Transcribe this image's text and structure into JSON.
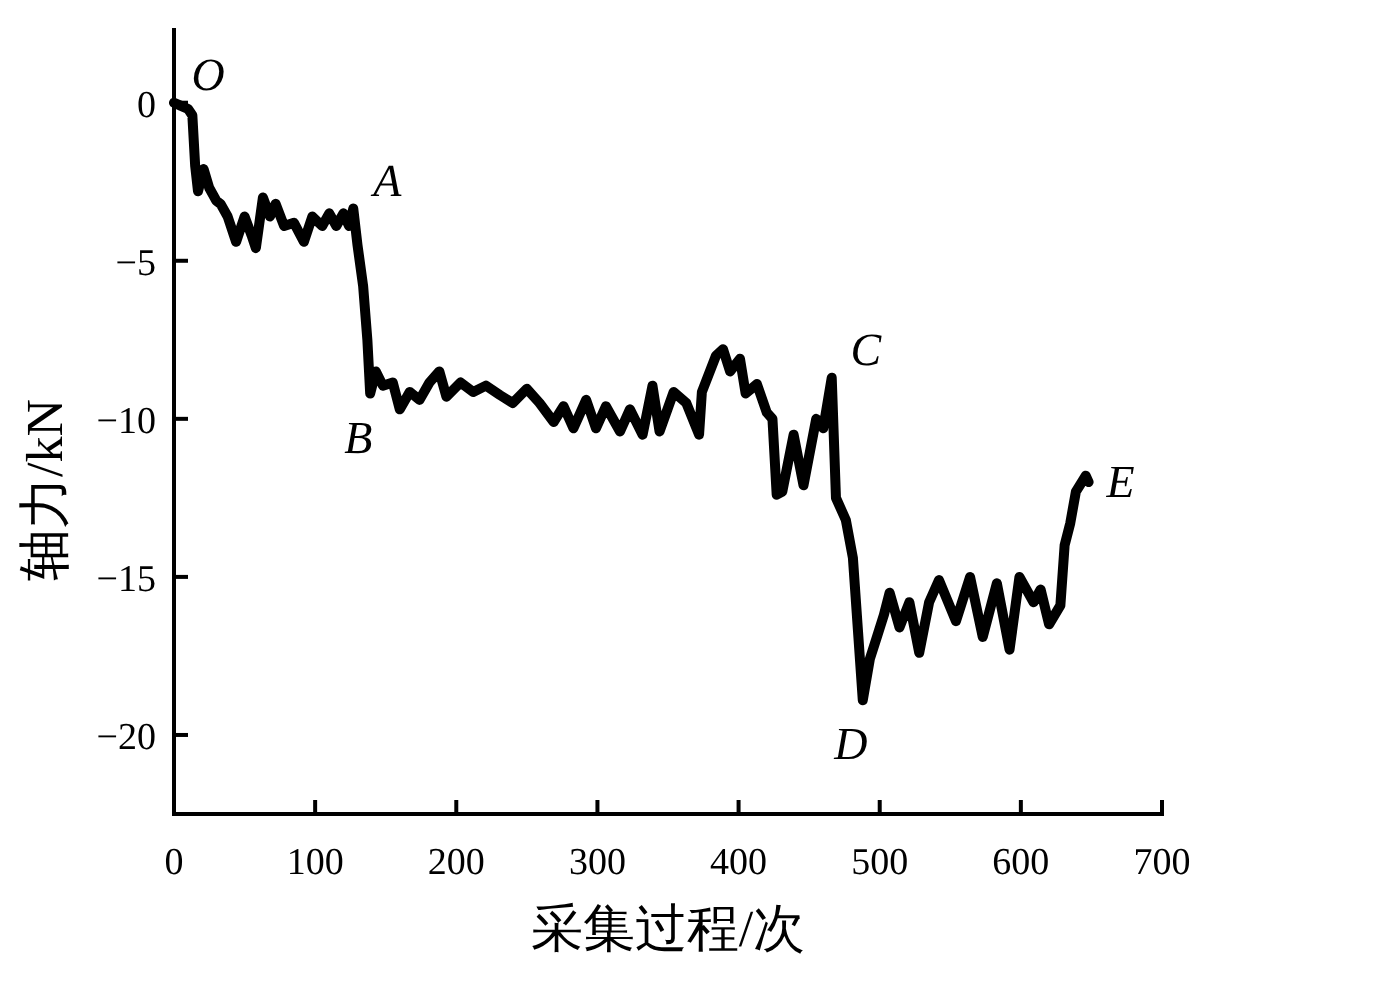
{
  "chart_data": {
    "type": "line",
    "xlabel": "采集过程/次",
    "ylabel": "轴力/kN",
    "x": [
      0,
      5,
      10,
      13,
      15,
      17,
      21,
      25,
      30,
      33,
      38,
      44,
      50,
      55,
      58,
      63,
      68,
      72,
      78,
      85,
      92,
      98,
      105,
      110,
      115,
      120,
      124,
      127,
      130,
      134,
      137,
      139,
      143,
      148,
      155,
      160,
      167,
      174,
      181,
      188,
      193,
      203,
      212,
      221,
      231,
      240,
      250,
      259,
      269,
      276,
      283,
      292,
      299,
      306,
      316,
      323,
      332,
      339,
      344,
      354,
      363,
      372,
      374,
      384,
      389,
      394,
      401,
      405,
      413,
      420,
      424,
      427,
      431,
      439,
      446,
      455,
      460,
      466,
      469,
      476,
      481,
      488,
      493,
      498,
      503,
      507,
      514,
      521,
      528,
      535,
      542,
      554,
      564,
      573,
      583,
      592,
      599,
      609,
      614,
      620,
      628,
      631,
      635,
      639,
      646,
      648
    ],
    "series": [
      {
        "color": "#000000",
        "values": [
          0,
          -0.1,
          -0.2,
          -0.4,
          -2.0,
          -2.8,
          -2.1,
          -2.7,
          -3.1,
          -3.2,
          -3.6,
          -4.4,
          -3.6,
          -4.2,
          -4.6,
          -3.0,
          -3.6,
          -3.2,
          -3.9,
          -3.8,
          -4.4,
          -3.6,
          -3.9,
          -3.5,
          -3.9,
          -3.5,
          -3.9,
          -3.35,
          -4.5,
          -5.8,
          -7.5,
          -9.2,
          -8.5,
          -8.95,
          -8.85,
          -9.7,
          -9.15,
          -9.4,
          -8.85,
          -8.5,
          -9.3,
          -8.85,
          -9.15,
          -8.95,
          -9.25,
          -9.5,
          -9.05,
          -9.5,
          -10.1,
          -9.6,
          -10.3,
          -9.4,
          -10.3,
          -9.6,
          -10.4,
          -9.7,
          -10.5,
          -8.95,
          -10.4,
          -9.15,
          -9.5,
          -10.5,
          -9.15,
          -8.0,
          -7.8,
          -8.5,
          -8.1,
          -9.2,
          -8.9,
          -9.8,
          -10.0,
          -12.4,
          -12.3,
          -10.5,
          -12.1,
          -10.0,
          -10.3,
          -8.7,
          -12.5,
          -13.2,
          -14.4,
          -18.9,
          -17.6,
          -16.9,
          -16.2,
          -15.5,
          -16.6,
          -15.8,
          -17.4,
          -15.8,
          -15.1,
          -16.4,
          -15.0,
          -16.9,
          -15.2,
          -17.3,
          -15.0,
          -15.8,
          -15.4,
          -16.5,
          -15.9,
          -14.0,
          -13.3,
          -12.3,
          -11.8,
          -12.0
        ]
      }
    ],
    "xlim": [
      0,
      700
    ],
    "xticks": [
      0,
      100,
      200,
      300,
      400,
      500,
      600,
      700
    ],
    "ylim": [
      -22.5,
      2.3
    ],
    "yticks": [
      -20,
      -15,
      -10,
      -5,
      0
    ],
    "annotations": [
      {
        "text": "O",
        "x": 0,
        "y": 0
      },
      {
        "text": "A",
        "x": 127,
        "y": -3.35
      },
      {
        "text": "B",
        "x": 139,
        "y": -9.2
      },
      {
        "text": "C",
        "x": 466,
        "y": -8.7
      },
      {
        "text": "D",
        "x": 488,
        "y": -18.9
      },
      {
        "text": "E",
        "x": 648,
        "y": -12.0
      }
    ]
  }
}
